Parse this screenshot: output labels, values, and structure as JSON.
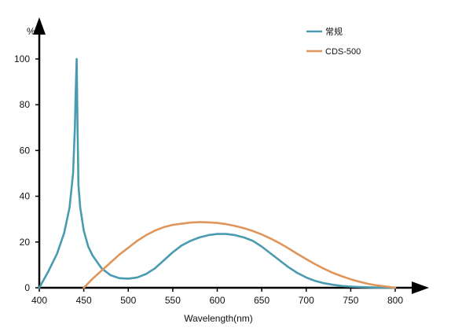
{
  "chart_data": {
    "type": "line",
    "title": "",
    "xlabel": "Wavelength(nm)",
    "ylabel": "%",
    "xlim": [
      400,
      800
    ],
    "ylim": [
      0,
      100
    ],
    "xticks": [
      400,
      450,
      500,
      550,
      600,
      650,
      700,
      750,
      800
    ],
    "yticks": [
      0,
      20,
      40,
      60,
      80,
      100
    ],
    "grid": false,
    "legend_position": "top-right",
    "series": [
      {
        "name": "常规",
        "color": "#4a9bb0",
        "x": [
          400,
          410,
          420,
          428,
          434,
          438,
          440,
          441,
          442,
          443,
          444,
          446,
          450,
          455,
          460,
          470,
          480,
          490,
          500,
          510,
          520,
          530,
          540,
          550,
          560,
          570,
          580,
          590,
          600,
          610,
          620,
          630,
          640,
          650,
          660,
          670,
          680,
          690,
          700,
          710,
          720,
          730,
          740,
          750,
          760,
          770,
          780,
          790,
          800
        ],
        "y": [
          0,
          7,
          15,
          24,
          35,
          50,
          70,
          86,
          100,
          70,
          45,
          35,
          25,
          18,
          14,
          8.5,
          5.5,
          4.2,
          4,
          4.5,
          6,
          8.5,
          12,
          15.5,
          18.5,
          20.5,
          22,
          23,
          23.5,
          23.5,
          23,
          22,
          20.5,
          18,
          15,
          12,
          9,
          6.5,
          4.5,
          3,
          2,
          1.3,
          0.8,
          0.5,
          0.3,
          0.2,
          0.1,
          0.1,
          0
        ]
      },
      {
        "name": "CDS-500",
        "color": "#e0955a",
        "x": [
          450,
          460,
          470,
          480,
          490,
          500,
          510,
          520,
          530,
          540,
          550,
          560,
          570,
          580,
          590,
          600,
          610,
          620,
          630,
          640,
          650,
          660,
          670,
          680,
          690,
          700,
          710,
          720,
          730,
          740,
          750,
          760,
          770,
          780,
          790,
          800
        ],
        "y": [
          0,
          4,
          7.5,
          11,
          14.5,
          17.5,
          20.5,
          23,
          25,
          26.5,
          27.5,
          28,
          28.5,
          28.7,
          28.6,
          28.3,
          27.8,
          27,
          26,
          24.8,
          23.3,
          21.5,
          19.5,
          17.2,
          14.8,
          12.5,
          10.3,
          8.3,
          6.5,
          5,
          3.7,
          2.6,
          1.7,
          1,
          0.5,
          0
        ]
      }
    ]
  }
}
